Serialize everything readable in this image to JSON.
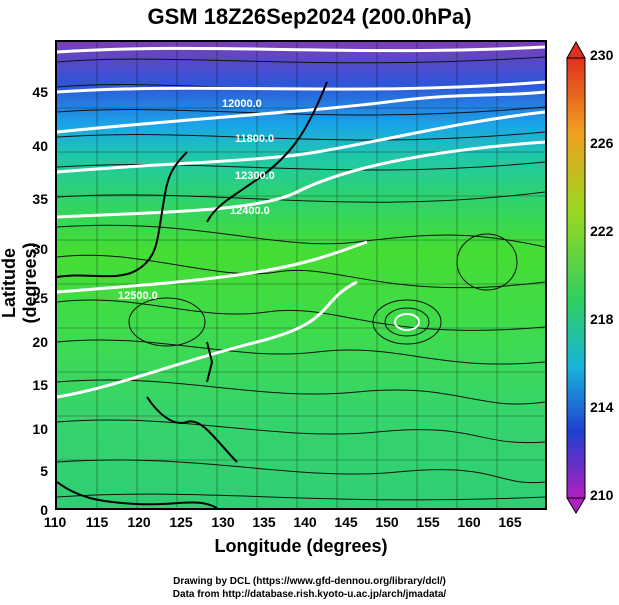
{
  "title": "GSM 18Z26Sep2024 (200.0hPa)",
  "axes": {
    "xlabel": "Longitude (degrees)",
    "ylabel": "Latitude  (degrees)",
    "xticks": [
      "110",
      "115",
      "120",
      "125",
      "130",
      "135",
      "140",
      "145",
      "150",
      "155",
      "160",
      "165"
    ],
    "yticks": [
      "45",
      "40",
      "35",
      "30",
      "25",
      "20",
      "15",
      "10",
      "5",
      "0"
    ]
  },
  "colorbar": {
    "labels": [
      "230",
      "226",
      "222",
      "218",
      "214",
      "210"
    ],
    "colors": [
      "#e0301e",
      "#f0a020",
      "#9ad820",
      "#2fcf60",
      "#18b4d8",
      "#2040d0",
      "#b020c0"
    ]
  },
  "contours": [
    "12500.0",
    "12400.0",
    "12300.0",
    "12000.0",
    "11800.0"
  ],
  "credits": {
    "line1": "Drawing by DCL (https://www.gfd-dennou.org/library/dcl/)",
    "line2": "Data from http://database.rish.kyoto-u.ac.jp/arch/jmadata/"
  }
}
